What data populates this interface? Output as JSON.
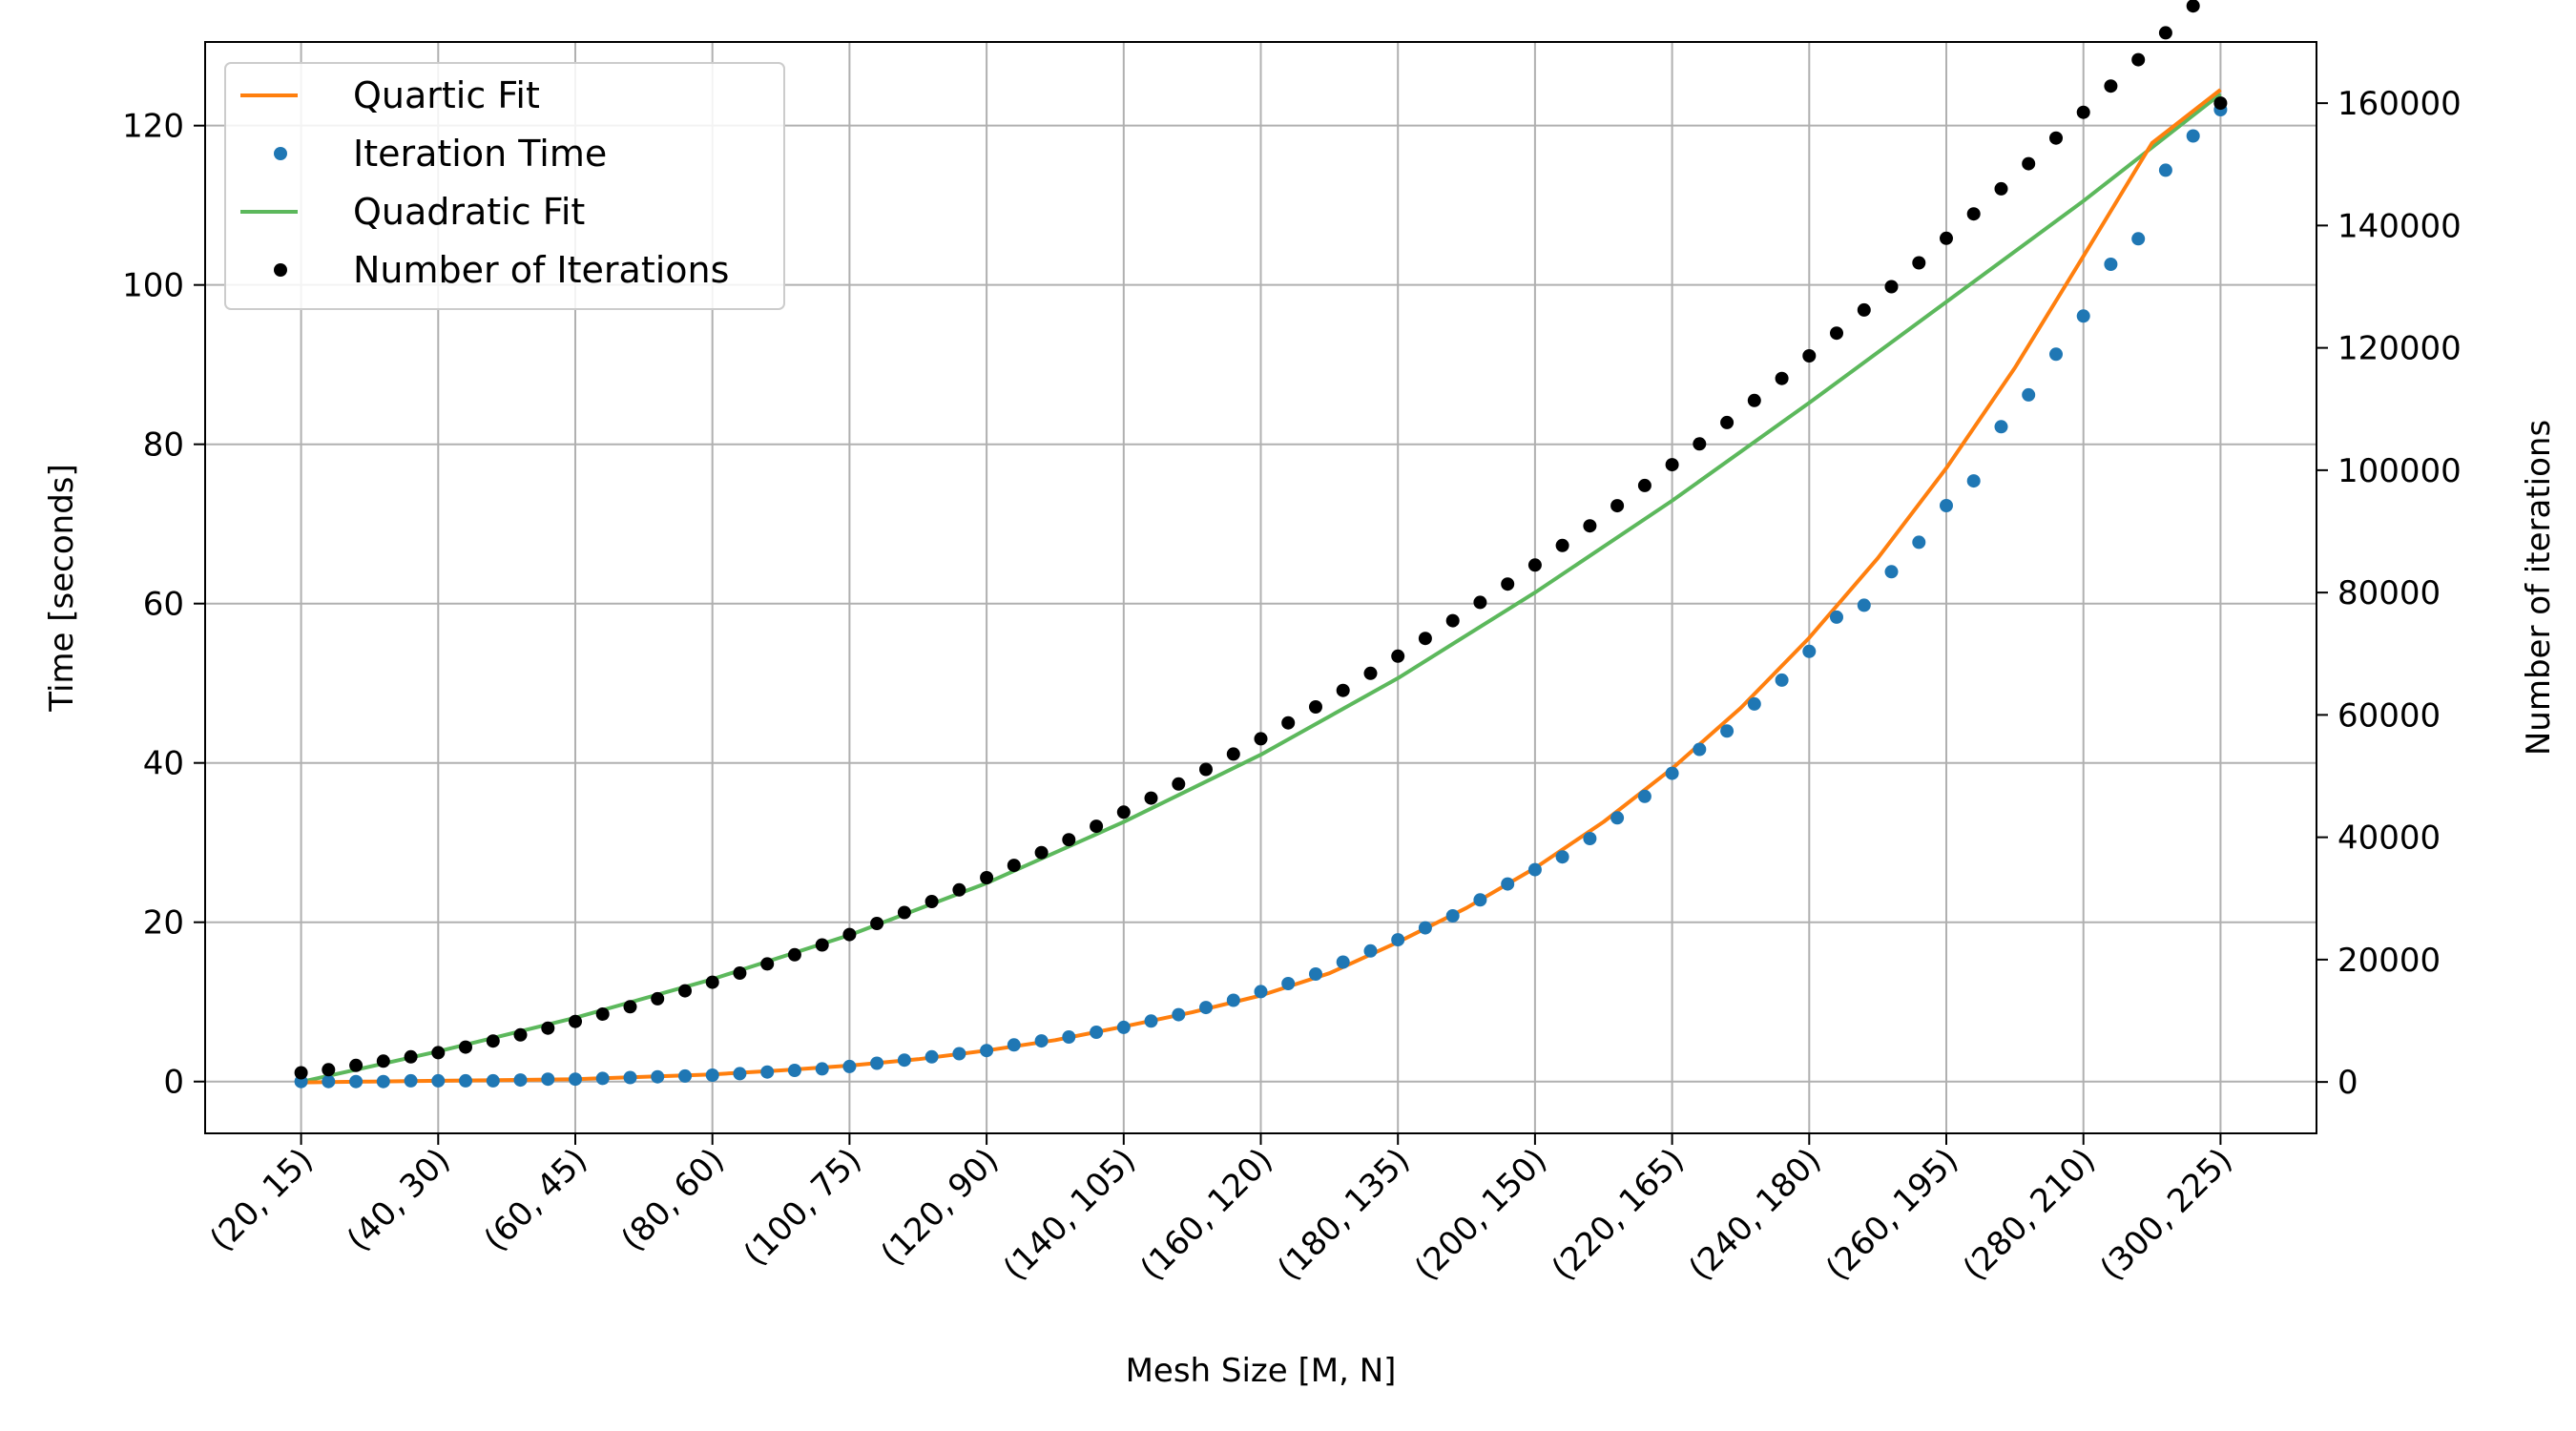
{
  "chart_data": {
    "type": "scatter",
    "title": "",
    "xlabel": "Mesh Size [M, N]",
    "ylabel": "Time [seconds]",
    "y2label": "Number of iterations",
    "x_tick_labels": [
      "(20, 15)",
      "(40, 30)",
      "(60, 45)",
      "(80, 60)",
      "(100, 75)",
      "(120, 90)",
      "(140, 105)",
      "(160, 120)",
      "(180, 135)",
      "(200, 150)",
      "(220, 165)",
      "(240, 180)",
      "(260, 195)",
      "(280, 210)",
      "(300, 225)"
    ],
    "x_tick_values": [
      20,
      40,
      60,
      80,
      100,
      120,
      140,
      160,
      180,
      200,
      220,
      240,
      260,
      280,
      300
    ],
    "xlim": [
      6,
      314
    ],
    "ylim": [
      -6.5,
      130.5
    ],
    "y2lim": [
      -8400,
      170000
    ],
    "y_ticks": [
      0,
      20,
      40,
      60,
      80,
      100,
      120
    ],
    "y2_ticks": [
      0,
      20000,
      40000,
      60000,
      80000,
      100000,
      120000,
      140000,
      160000
    ],
    "grid": true,
    "legend_position": "top-left",
    "legend": [
      "Quartic Fit",
      "Iteration Time",
      "Quadratic Fit",
      "Number of Iterations"
    ],
    "colors": {
      "quartic_fit": "#ff7f0e",
      "iteration_time": "#1f77b4",
      "quadratic_fit": "#5cb85c",
      "iterations": "#000000"
    },
    "series": [
      {
        "name": "Iteration Time",
        "axis": "left",
        "x": [
          20,
          24,
          28,
          32,
          36,
          40,
          44,
          48,
          52,
          56,
          60,
          64,
          68,
          72,
          76,
          80,
          84,
          88,
          92,
          96,
          100,
          104,
          108,
          112,
          116,
          120,
          124,
          128,
          132,
          136,
          140,
          144,
          148,
          152,
          156,
          160,
          164,
          168,
          172,
          176,
          180,
          184,
          188,
          192,
          196,
          200,
          204,
          208,
          212,
          216,
          220,
          224,
          228,
          232,
          236,
          240,
          244,
          248,
          252,
          256,
          260,
          264,
          268,
          272,
          276,
          280,
          284,
          288,
          292,
          296,
          300
        ],
        "values": [
          0.0,
          0.0,
          0.0,
          0.0,
          0.1,
          0.1,
          0.1,
          0.1,
          0.2,
          0.3,
          0.3,
          0.4,
          0.5,
          0.6,
          0.7,
          0.8,
          1.0,
          1.2,
          1.4,
          1.6,
          1.9,
          2.3,
          2.7,
          3.1,
          3.5,
          3.9,
          4.6,
          5.1,
          5.6,
          6.2,
          6.8,
          7.6,
          8.4,
          9.3,
          10.2,
          11.3,
          12.3,
          13.5,
          15.0,
          16.4,
          17.8,
          19.3,
          20.8,
          22.8,
          24.8,
          26.6,
          28.2,
          30.5,
          33.1,
          35.8,
          38.7,
          41.7,
          44.0,
          47.4,
          50.4,
          54.0,
          58.3,
          59.8,
          64.0,
          67.7,
          72.3,
          75.4,
          82.2,
          86.2,
          91.3,
          96.1,
          102.6,
          105.8,
          114.4,
          118.7,
          122.0
        ]
      },
      {
        "name": "Number of Iterations",
        "axis": "right",
        "x": [
          20,
          24,
          28,
          32,
          36,
          40,
          44,
          48,
          52,
          56,
          60,
          64,
          68,
          72,
          76,
          80,
          84,
          88,
          92,
          96,
          100,
          104,
          108,
          112,
          116,
          120,
          124,
          128,
          132,
          136,
          140,
          144,
          148,
          152,
          156,
          160,
          164,
          168,
          172,
          176,
          180,
          184,
          188,
          192,
          196,
          200,
          204,
          208,
          212,
          216,
          220,
          224,
          228,
          232,
          236,
          240,
          244,
          248,
          252,
          256,
          260,
          264,
          268,
          272,
          276,
          280,
          284,
          288,
          292,
          296,
          300
        ],
        "values": [
          1500,
          2000,
          2700,
          3400,
          4100,
          4800,
          5700,
          6700,
          7700,
          8800,
          9900,
          11100,
          12300,
          13600,
          14900,
          16300,
          17800,
          19300,
          20800,
          22400,
          24100,
          25900,
          27700,
          29500,
          31400,
          33400,
          35400,
          37500,
          39600,
          41800,
          44100,
          46400,
          48700,
          51100,
          53600,
          56100,
          58700,
          61300,
          64000,
          66800,
          69600,
          72500,
          75400,
          78400,
          81400,
          84500,
          87700,
          90900,
          94200,
          97500,
          100900,
          104300,
          107800,
          111400,
          115000,
          118700,
          122400,
          126200,
          130000,
          133900,
          137900,
          141900,
          146000,
          150100,
          154300,
          158500,
          162800,
          167100,
          171500,
          175900,
          160000
        ]
      },
      {
        "name": "Quartic Fit",
        "axis": "left",
        "type": "line",
        "x": [
          20,
          30,
          40,
          50,
          60,
          70,
          80,
          90,
          100,
          110,
          120,
          130,
          140,
          150,
          160,
          170,
          180,
          190,
          200,
          210,
          220,
          230,
          240,
          250,
          260,
          270,
          280,
          290,
          300
        ],
        "values": [
          -0.1,
          0.0,
          0.1,
          0.2,
          0.3,
          0.6,
          0.9,
          1.4,
          2.0,
          2.8,
          3.9,
          5.2,
          6.9,
          8.7,
          10.8,
          13.6,
          17.5,
          21.8,
          26.8,
          32.6,
          39.3,
          46.9,
          55.7,
          65.7,
          77.0,
          89.6,
          103.6,
          117.8,
          124.5
        ]
      },
      {
        "name": "Quadratic Fit",
        "axis": "right",
        "type": "line",
        "x": [
          20,
          40,
          60,
          80,
          100,
          120,
          140,
          160,
          180,
          200,
          220,
          240,
          260,
          280,
          300
        ],
        "values": [
          0,
          5000,
          10500,
          16800,
          24000,
          32500,
          42500,
          53500,
          66000,
          80000,
          95000,
          111000,
          127500,
          144000,
          161500
        ]
      }
    ]
  }
}
